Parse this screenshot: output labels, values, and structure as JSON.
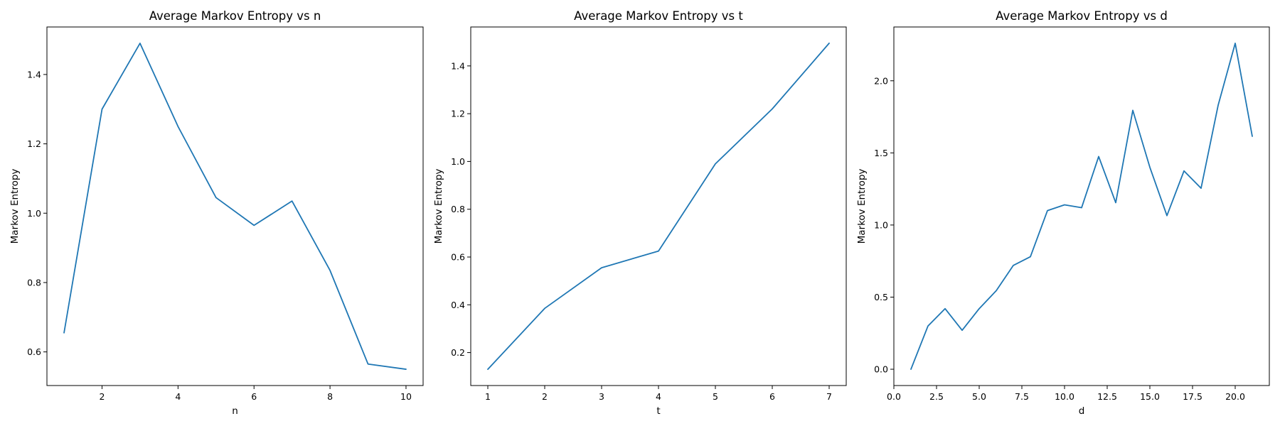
{
  "chart_data": [
    {
      "type": "line",
      "title": "Average Markov Entropy vs n",
      "xlabel": "n",
      "ylabel": "Markov Entropy",
      "x": [
        1,
        2,
        3,
        4,
        5,
        6,
        7,
        8,
        9,
        10
      ],
      "series": [
        {
          "values": [
            0.655,
            1.3,
            1.49,
            1.25,
            1.045,
            0.965,
            1.035,
            0.835,
            0.565,
            0.55
          ],
          "color": "#1f77b4"
        }
      ],
      "xlim": [
        0.55,
        10.45
      ],
      "ylim": [
        0.503,
        1.537
      ],
      "xticks": [
        2,
        4,
        6,
        8,
        10
      ],
      "xtick_labels": [
        "2",
        "4",
        "6",
        "8",
        "10"
      ],
      "yticks": [
        0.6,
        0.8,
        1.0,
        1.2,
        1.4
      ],
      "ytick_labels": [
        "0.6",
        "0.8",
        "1.0",
        "1.2",
        "1.4"
      ],
      "grid": false
    },
    {
      "type": "line",
      "title": "Average Markov Entropy vs t",
      "xlabel": "t",
      "ylabel": "Markov Entropy",
      "x": [
        1,
        2,
        3,
        4,
        5,
        6,
        7
      ],
      "series": [
        {
          "values": [
            0.13,
            0.385,
            0.555,
            0.625,
            0.99,
            1.22,
            1.495
          ],
          "color": "#1f77b4"
        }
      ],
      "xlim": [
        0.7,
        7.3
      ],
      "ylim": [
        0.062,
        1.563
      ],
      "xticks": [
        1,
        2,
        3,
        4,
        5,
        6,
        7
      ],
      "xtick_labels": [
        "1",
        "2",
        "3",
        "4",
        "5",
        "6",
        "7"
      ],
      "yticks": [
        0.2,
        0.4,
        0.6,
        0.8,
        1.0,
        1.2,
        1.4
      ],
      "ytick_labels": [
        "0.2",
        "0.4",
        "0.6",
        "0.8",
        "1.0",
        "1.2",
        "1.4"
      ],
      "grid": false
    },
    {
      "type": "line",
      "title": "Average Markov Entropy vs d",
      "xlabel": "d",
      "ylabel": "Markov Entropy",
      "x": [
        1,
        2,
        3,
        4,
        5,
        6,
        7,
        8,
        9,
        10,
        11,
        12,
        13,
        14,
        15,
        16,
        17,
        18,
        19,
        20,
        21
      ],
      "series": [
        {
          "values": [
            0.0,
            0.3,
            0.42,
            0.27,
            0.42,
            0.545,
            0.72,
            0.78,
            1.1,
            1.14,
            1.12,
            1.475,
            1.155,
            1.795,
            1.4,
            1.065,
            1.375,
            1.255,
            1.83,
            2.26,
            1.615
          ],
          "color": "#1f77b4"
        }
      ],
      "xlim": [
        0.0,
        22.0
      ],
      "ylim": [
        -0.113,
        2.373
      ],
      "xticks": [
        0.0,
        2.5,
        5.0,
        7.5,
        10.0,
        12.5,
        15.0,
        17.5,
        20.0
      ],
      "xtick_labels": [
        "0.0",
        "2.5",
        "5.0",
        "7.5",
        "10.0",
        "12.5",
        "15.0",
        "17.5",
        "20.0"
      ],
      "yticks": [
        0.0,
        0.5,
        1.0,
        1.5,
        2.0
      ],
      "ytick_labels": [
        "0.0",
        "0.5",
        "1.0",
        "1.5",
        "2.0"
      ],
      "grid": false
    }
  ]
}
